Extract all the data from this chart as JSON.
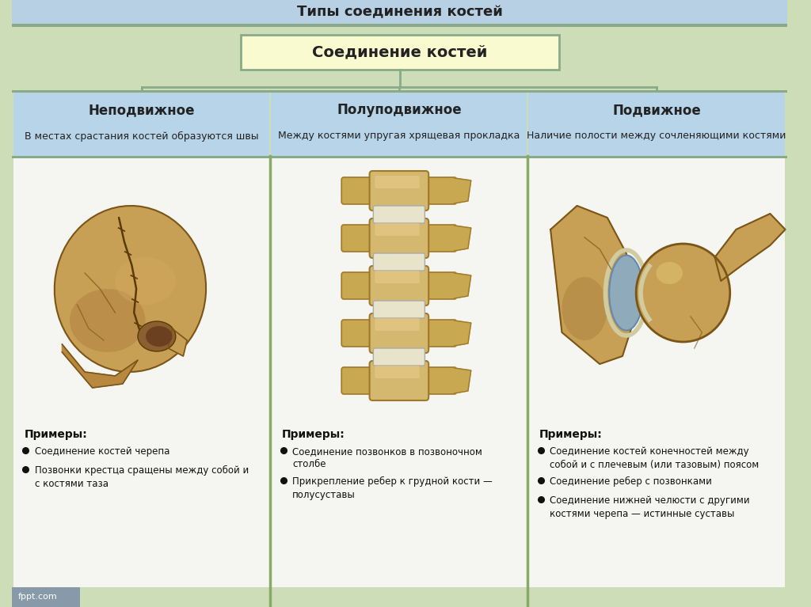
{
  "title": "Типы соединения костей",
  "main_box_text": "Соединение костей",
  "columns": [
    {
      "header": "Неподвижное",
      "subheader": "В местах срастания костей образуются швы",
      "examples_title": "Примеры:",
      "examples": [
        "Соединение костей черепа",
        "Позвонки крестца сращены между собой и\nс костями таза"
      ]
    },
    {
      "header": "Полуподвижное",
      "subheader": "Между костями упругая хрящевая прокладка",
      "examples_title": "Примеры:",
      "examples": [
        "Соединение позвонков в позвоночном\nстолбе",
        "Прикрепление ребер к грудной кости —\nполусуставы"
      ]
    },
    {
      "header": "Подвижное",
      "subheader": "Наличие полости между сочленяющими костями",
      "examples_title": "Примеры:",
      "examples": [
        "Соединение костей конечностей между\nсобой и с плечевым (или тазовым) поясом",
        "Соединение ребер с позвонками",
        "Соединение нижней челюсти с другими\nкостями черепа — истинные суставы"
      ]
    }
  ],
  "bg_color": "#ccddb8",
  "header_bg": "#b8d4e8",
  "main_box_bg": "#fafad0",
  "image_area_bg": "#e8e8e8",
  "text_area_bg": "#f0f0f0",
  "title_bar_bg": "#b8d0e4",
  "connector_color": "#88aa88",
  "border_color": "#88aa88",
  "footer_bar_color": "#8899aa",
  "footer_text": "fppt.com",
  "col_divider_color": "#88aa66"
}
